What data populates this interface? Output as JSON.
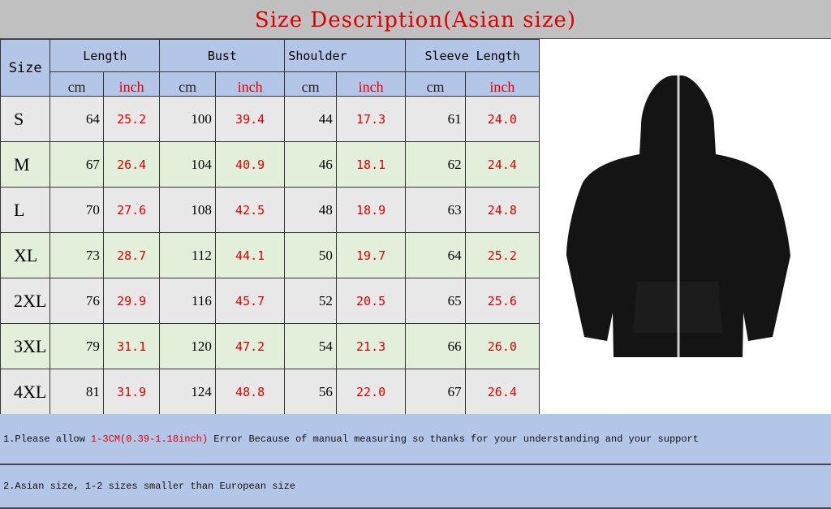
{
  "title": "Size Description(Asian size)",
  "headers": {
    "size": "Size",
    "length": "Length",
    "bust": "Bust",
    "shoulder": "Shoulder",
    "sleeve": "Sleeve Length",
    "cm": "cm",
    "inch": "inch"
  },
  "rows": [
    {
      "size": "S",
      "length_cm": "64",
      "length_in": "25.2",
      "bust_cm": "100",
      "bust_in": "39.4",
      "shoulder_cm": "44",
      "shoulder_in": "17.3",
      "sleeve_cm": "61",
      "sleeve_in": "24.0"
    },
    {
      "size": "M",
      "length_cm": "67",
      "length_in": "26.4",
      "bust_cm": "104",
      "bust_in": "40.9",
      "shoulder_cm": "46",
      "shoulder_in": "18.1",
      "sleeve_cm": "62",
      "sleeve_in": "24.4"
    },
    {
      "size": "L",
      "length_cm": "70",
      "length_in": "27.6",
      "bust_cm": "108",
      "bust_in": "42.5",
      "shoulder_cm": "48",
      "shoulder_in": "18.9",
      "sleeve_cm": "63",
      "sleeve_in": "24.8"
    },
    {
      "size": "XL",
      "length_cm": "73",
      "length_in": "28.7",
      "bust_cm": "112",
      "bust_in": "44.1",
      "shoulder_cm": "50",
      "shoulder_in": "19.7",
      "sleeve_cm": "64",
      "sleeve_in": "25.2"
    },
    {
      "size": "2XL",
      "length_cm": "76",
      "length_in": "29.9",
      "bust_cm": "116",
      "bust_in": "45.7",
      "shoulder_cm": "52",
      "shoulder_in": "20.5",
      "sleeve_cm": "65",
      "sleeve_in": "25.6"
    },
    {
      "size": "3XL",
      "length_cm": "79",
      "length_in": "31.1",
      "bust_cm": "120",
      "bust_in": "47.2",
      "shoulder_cm": "54",
      "shoulder_in": "21.3",
      "sleeve_cm": "66",
      "sleeve_in": "26.0"
    },
    {
      "size": "4XL",
      "length_cm": "81",
      "length_in": "31.9",
      "bust_cm": "124",
      "bust_in": "48.8",
      "shoulder_cm": "56",
      "shoulder_in": "22.0",
      "sleeve_cm": "67",
      "sleeve_in": "26.4"
    }
  ],
  "notes": {
    "n1_a": "1.Please allow ",
    "n1_red": "1-3CM(0.39-1.18inch)",
    "n1_b": " Error Because of manual measuring so thanks for your understanding and your support",
    "n2": "2.Asian size, 1-2 sizes smaller than European size"
  },
  "colors": {
    "title": "#e00000",
    "header_bg": "#b4c6e7",
    "row_gray": "#e8e8e8",
    "row_green": "#e2efda"
  }
}
